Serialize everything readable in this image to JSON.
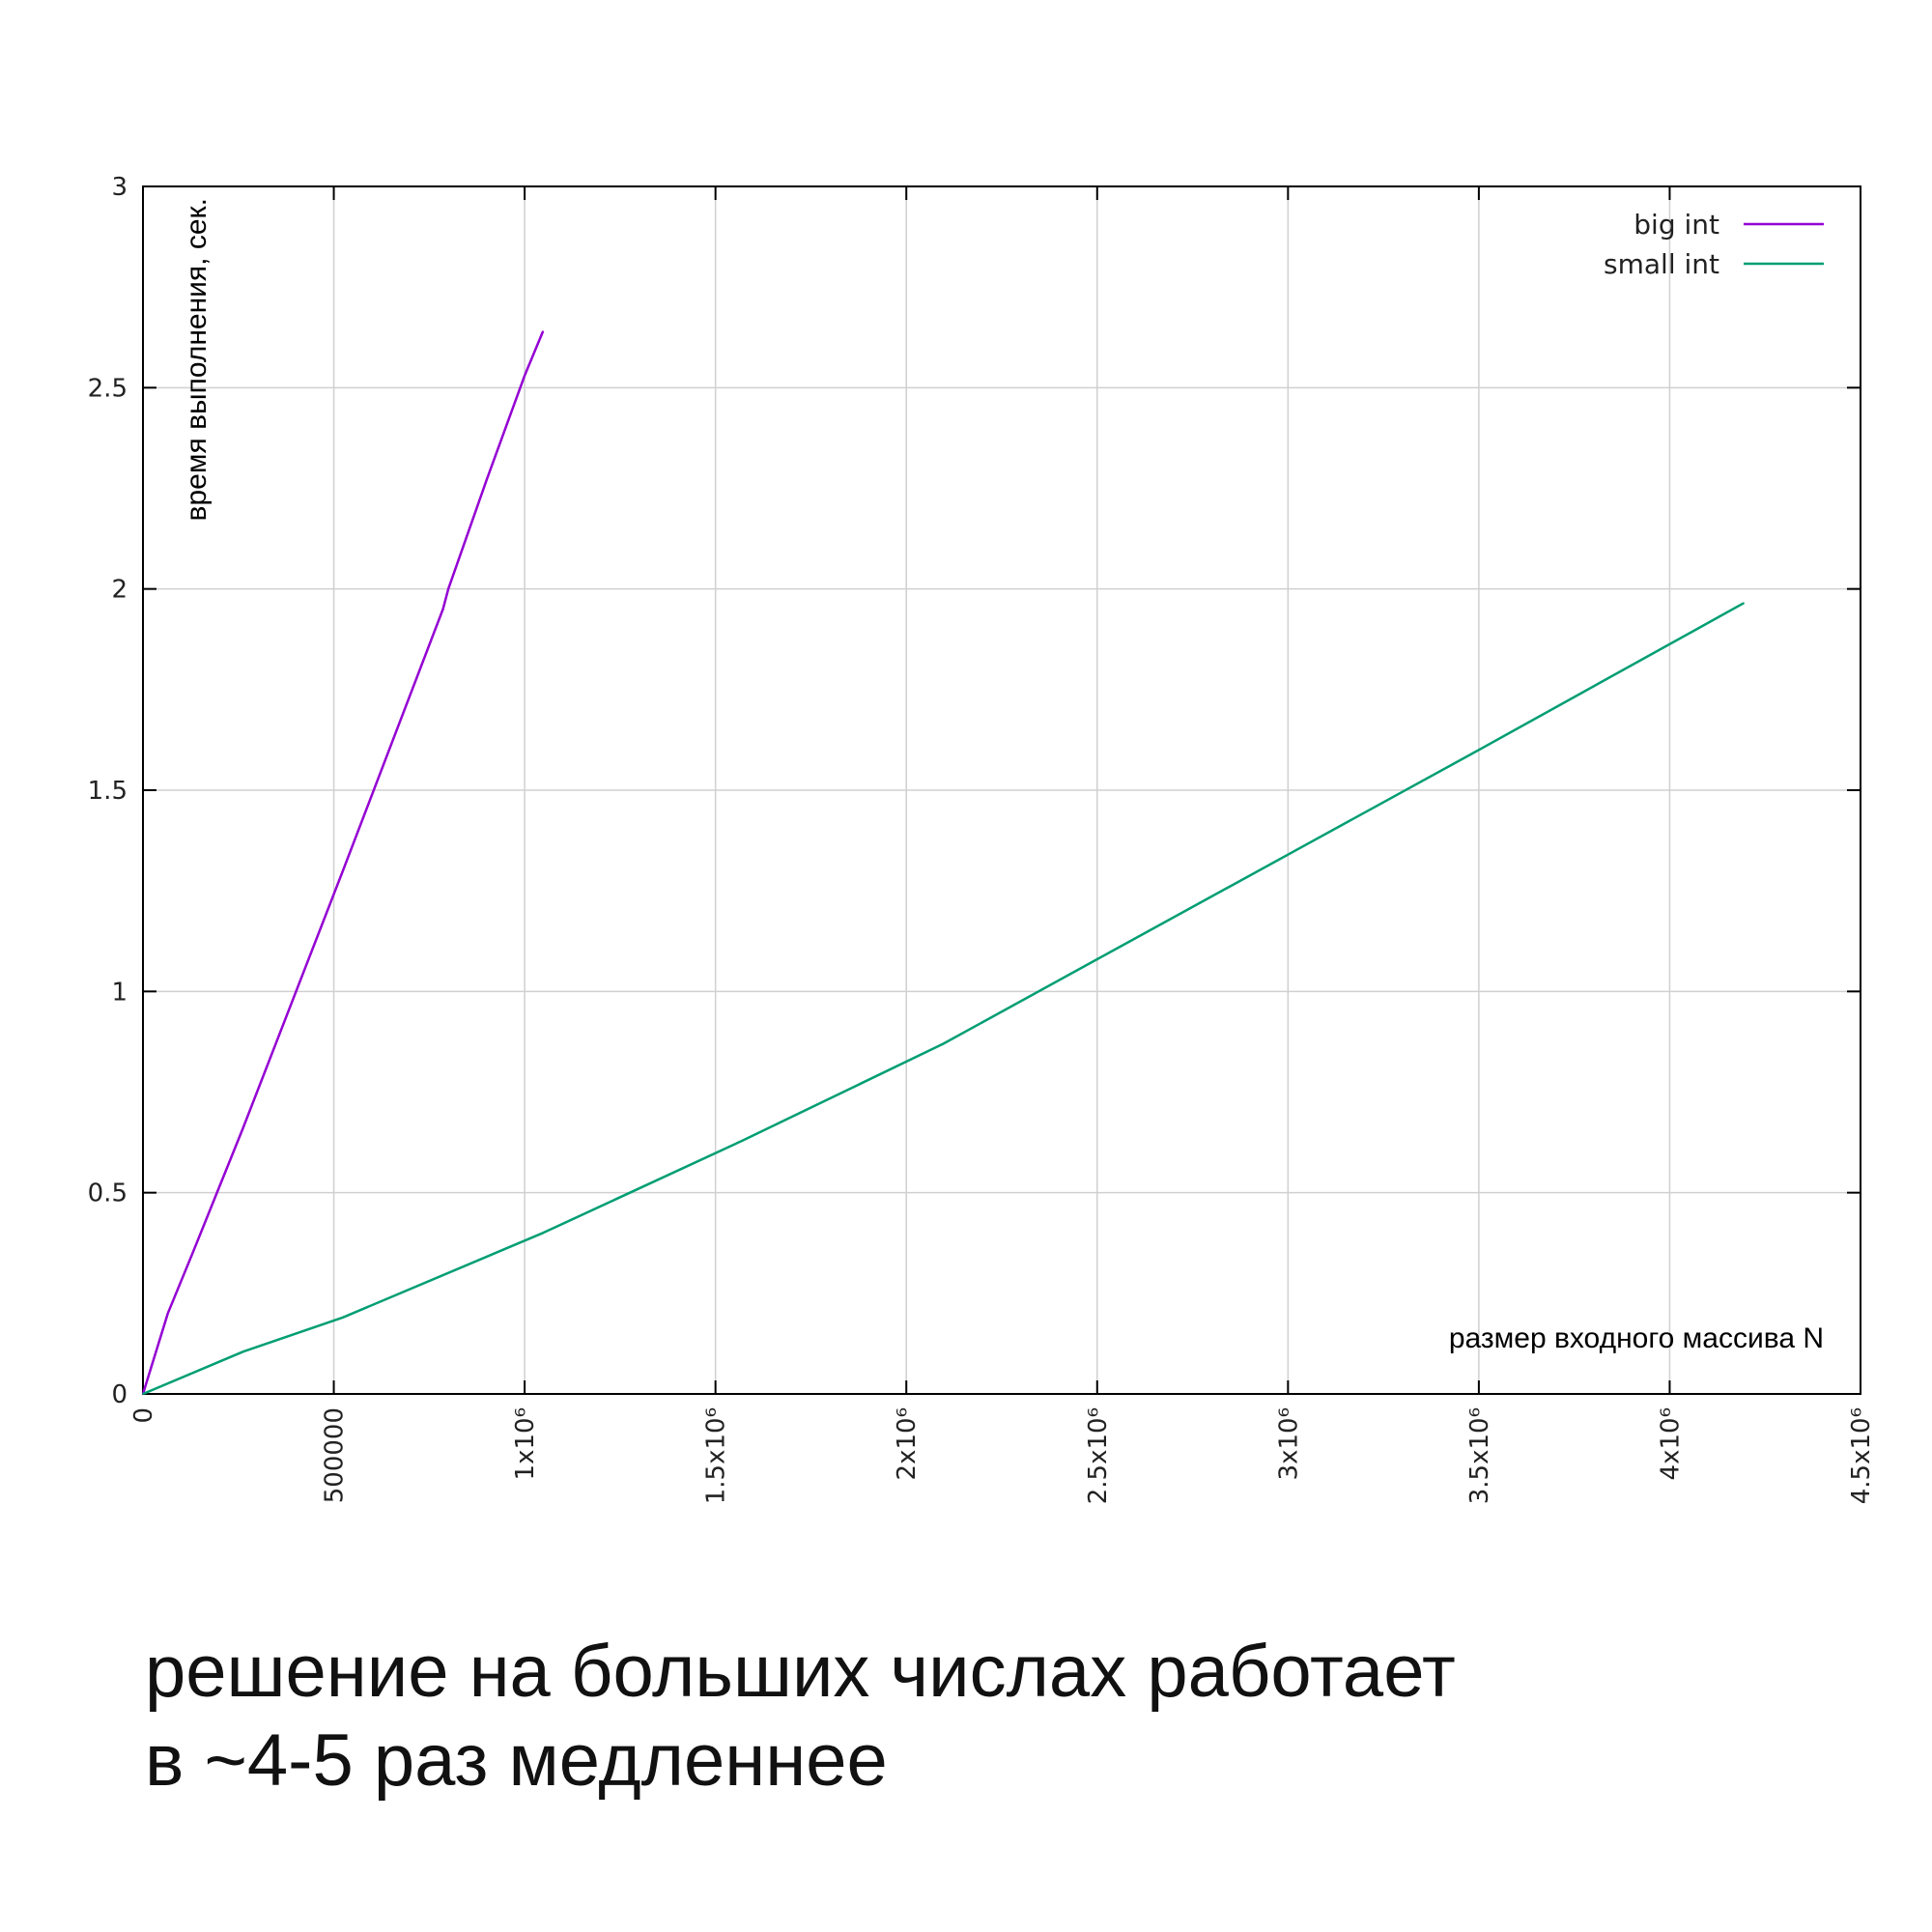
{
  "chart_data": {
    "type": "line",
    "xlabel": "размер входного массива N",
    "ylabel": "время выполнения, сек.",
    "xlim": [
      0,
      4500000
    ],
    "ylim": [
      0,
      3
    ],
    "x_ticks": [
      {
        "value": 0,
        "label": "0"
      },
      {
        "value": 500000,
        "label": "500000"
      },
      {
        "value": 1000000,
        "label": "1x10⁶"
      },
      {
        "value": 1500000,
        "label": "1.5x10⁶"
      },
      {
        "value": 2000000,
        "label": "2x10⁶"
      },
      {
        "value": 2500000,
        "label": "2.5x10⁶"
      },
      {
        "value": 3000000,
        "label": "3x10⁶"
      },
      {
        "value": 3500000,
        "label": "3.5x10⁶"
      },
      {
        "value": 4000000,
        "label": "4x10⁶"
      },
      {
        "value": 4500000,
        "label": "4.5x10⁶"
      }
    ],
    "y_ticks": [
      {
        "value": 0,
        "label": "0"
      },
      {
        "value": 0.5,
        "label": "0.5"
      },
      {
        "value": 1,
        "label": "1"
      },
      {
        "value": 1.5,
        "label": "1.5"
      },
      {
        "value": 2,
        "label": "2"
      },
      {
        "value": 2.5,
        "label": "2.5"
      },
      {
        "value": 3,
        "label": "3"
      }
    ],
    "grid": true,
    "legend_position": "top-right",
    "series": [
      {
        "name": "big int",
        "color": "#9400d3",
        "points": [
          [
            0,
            0
          ],
          [
            65000,
            0.2
          ],
          [
            130000,
            0.35
          ],
          [
            262000,
            0.66
          ],
          [
            524000,
            1.3
          ],
          [
            786000,
            1.95
          ],
          [
            800000,
            2.0
          ],
          [
            900000,
            2.27
          ],
          [
            1000000,
            2.53
          ],
          [
            1048000,
            2.64
          ]
        ]
      },
      {
        "name": "small int",
        "color": "#009e73",
        "points": [
          [
            0,
            0
          ],
          [
            262000,
            0.105
          ],
          [
            524000,
            0.19
          ],
          [
            1048000,
            0.4
          ],
          [
            1572000,
            0.63
          ],
          [
            2097000,
            0.87
          ],
          [
            2500000,
            1.08
          ],
          [
            3000000,
            1.34
          ],
          [
            3500000,
            1.6
          ],
          [
            4194000,
            1.965
          ]
        ]
      }
    ]
  },
  "caption": {
    "line1": "решение на больших числах работает",
    "line2": "в ~4-5 раз медленнее"
  }
}
